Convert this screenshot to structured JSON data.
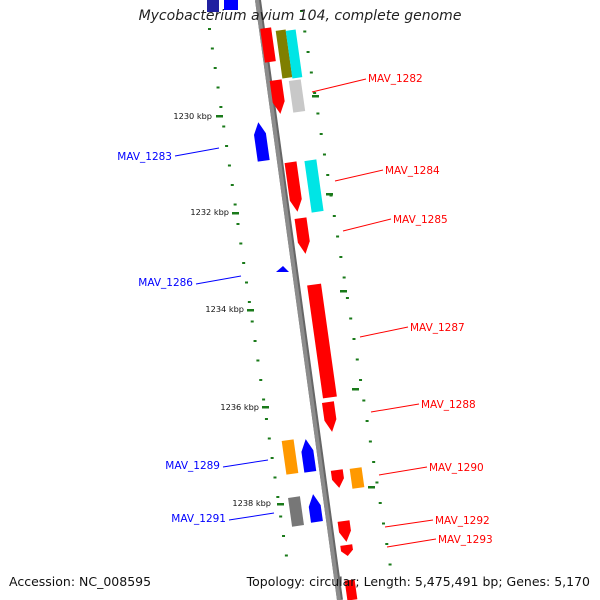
{
  "title": "Mycobacterium avium 104, complete genome",
  "footer": {
    "accession": "Accession: NC_008595",
    "summary": "Topology: circular; Length: 5,475,491 bp; Genes: 5,170"
  },
  "colors": {
    "backbone": "#8c8c8c",
    "forward_gene": "#ff0000",
    "reverse_gene": "#0000ff",
    "ticks": "#1a7a1a",
    "cyan": "#00e5e5",
    "orange": "#ff9900",
    "gray": "#777777",
    "lightgray": "#c8c8c8",
    "olive": "#7f7f00"
  },
  "scale_labels": [
    "1230 kbp",
    "1232 kbp",
    "1234 kbp",
    "1236 kbp",
    "1238 kbp"
  ],
  "gene_labels": {
    "forward": [
      "MAV_1282",
      "MAV_1284",
      "MAV_1285",
      "MAV_1287",
      "MAV_1288",
      "MAV_1290",
      "MAV_1292",
      "MAV_1293"
    ],
    "reverse": [
      "MAV_1283",
      "MAV_1286",
      "MAV_1289",
      "MAV_1291"
    ]
  }
}
